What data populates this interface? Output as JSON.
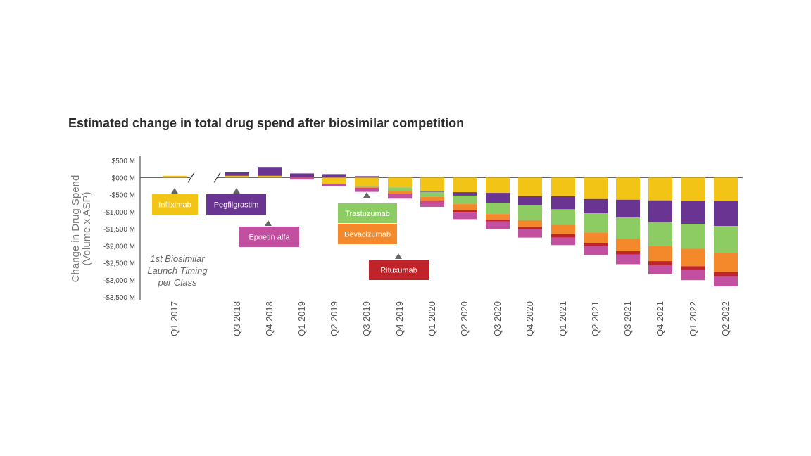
{
  "chart_data": {
    "type": "bar",
    "stacked": true,
    "title": "Estimated change in total drug spend after biosimilar competition",
    "ylabel": "Change in Drug Spend (Volume x ASP)",
    "ylabel_lines": [
      "Change in Drug Spend",
      "(Volume  x ASP)"
    ],
    "ylim": [
      -3500,
      500
    ],
    "yticks": [
      500,
      0,
      -500,
      -1000,
      -1500,
      -2000,
      -2500,
      -3000,
      -3500
    ],
    "ytick_labels": [
      "$500 M",
      "$000 M",
      "-$500 M",
      "-$1,000 M",
      "-$1,500 M",
      "-$2,000 M",
      "-$2,500 M",
      "-$3,000 M",
      "-$3,500 M"
    ],
    "grid": false,
    "categories": [
      "Q1 2017",
      "Q3 2018",
      "Q4 2018",
      "Q1 2019",
      "Q2 2019",
      "Q3 2019",
      "Q4 2019",
      "Q1 2020",
      "Q2 2020",
      "Q3 2020",
      "Q4 2020",
      "Q1 2021",
      "Q2 2021",
      "Q3 2021",
      "Q4 2021",
      "Q1 2022",
      "Q2 2022"
    ],
    "series": [
      {
        "name": "Infliximab",
        "color": "#f2c416",
        "values": [
          50,
          50,
          50,
          20,
          -180,
          -250,
          -290,
          -400,
          -430,
          -450,
          -550,
          -550,
          -630,
          -650,
          -670,
          -680,
          -690
        ]
      },
      {
        "name": "Pegfilgrastim",
        "color": "#6a3592",
        "values": [
          0,
          100,
          240,
          100,
          100,
          40,
          0,
          -20,
          -100,
          -290,
          -270,
          -380,
          -420,
          -520,
          -650,
          -680,
          -730
        ]
      },
      {
        "name": "Trastuzumab",
        "color": "#8ccc62",
        "values": [
          0,
          0,
          0,
          0,
          0,
          -30,
          -100,
          -150,
          -250,
          -330,
          -430,
          -450,
          -560,
          -620,
          -680,
          -720,
          -790
        ]
      },
      {
        "name": "Bevacizumab",
        "color": "#f4892b",
        "values": [
          0,
          0,
          0,
          0,
          0,
          -20,
          -80,
          -100,
          -180,
          -160,
          -200,
          -280,
          -310,
          -370,
          -450,
          -520,
          -560
        ]
      },
      {
        "name": "Rituxumab",
        "color": "#c0242a",
        "values": [
          0,
          0,
          0,
          0,
          0,
          0,
          -20,
          -40,
          -50,
          -60,
          -60,
          -100,
          -80,
          -100,
          -120,
          -110,
          -120
        ]
      },
      {
        "name": "Epoetin alfa",
        "color": "#c24f9f",
        "values": [
          0,
          0,
          0,
          -60,
          -70,
          -120,
          -130,
          -150,
          -210,
          -220,
          -250,
          -220,
          -270,
          -280,
          -270,
          -300,
          -300
        ]
      }
    ],
    "legend_note": "1st Biosimilar Launch Timing per Class",
    "legend_note_lines": [
      "1st Biosimilar",
      "Launch Timing",
      "per Class"
    ],
    "callouts": [
      {
        "label": "Infliximab",
        "series": "Infliximab",
        "category": "Q1 2017"
      },
      {
        "label": "Pegfilgrastim",
        "series": "Pegfilgrastim",
        "category": "Q3 2018"
      },
      {
        "label": "Epoetin alfa",
        "series": "Epoetin alfa",
        "category": "Q4 2018"
      },
      {
        "label": "Trastuzumab",
        "series": "Trastuzumab",
        "category": "Q3 2019"
      },
      {
        "label": "Bevacizumab",
        "series": "Bevacizumab",
        "category": "Q3 2019"
      },
      {
        "label": "Rituxumab",
        "series": "Rituxumab",
        "category": "Q4 2019"
      }
    ]
  }
}
